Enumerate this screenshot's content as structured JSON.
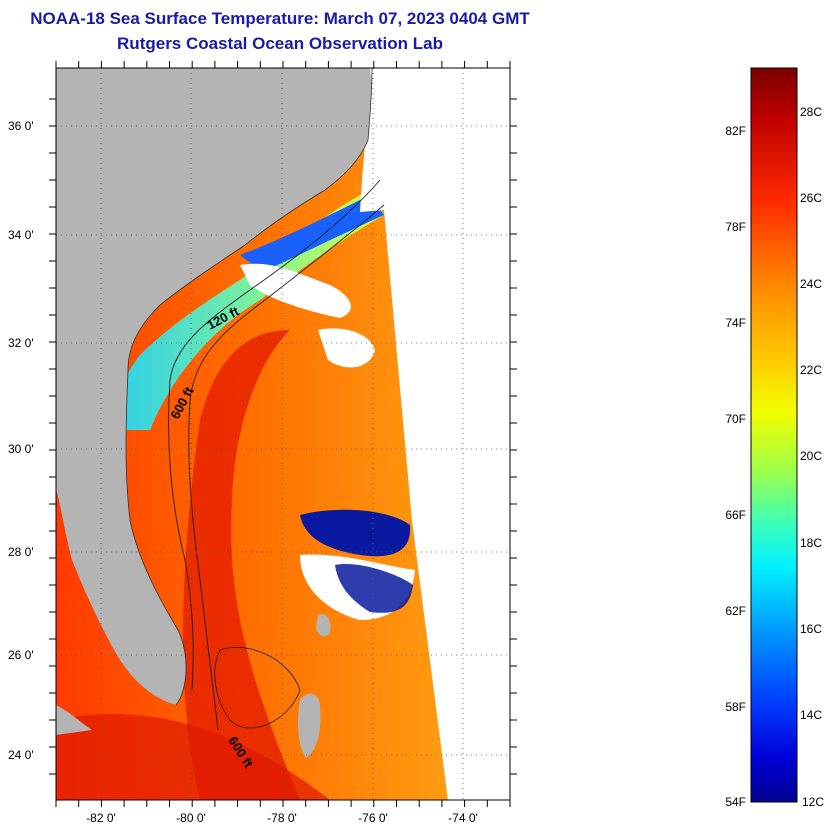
{
  "title": {
    "line1": "NOAA-18 Sea Surface Temperature:  March 07, 2023 0404 GMT",
    "line2": "Rutgers Coastal Ocean Observation Lab"
  },
  "map": {
    "lat_labels": [
      "36 0'",
      "34 0'",
      "32 0'",
      "30 0'",
      "28 0'",
      "26 0'",
      "24 0'"
    ],
    "lon_labels": [
      "-82 0'",
      "-80 0'",
      "-78 0'",
      "-76 0'",
      "-74 0'"
    ],
    "land_color": "#b4b4b4",
    "contour_labels": [
      "120 ft",
      "600 ft",
      "600 ft"
    ]
  },
  "colorbar": {
    "fahrenheit_labels": [
      "82F",
      "78F",
      "74F",
      "70F",
      "66F",
      "62F",
      "58F",
      "54F"
    ],
    "celsius_labels": [
      "28C",
      "26C",
      "24C",
      "22C",
      "20C",
      "18C",
      "16C",
      "14C",
      "12C"
    ]
  }
}
